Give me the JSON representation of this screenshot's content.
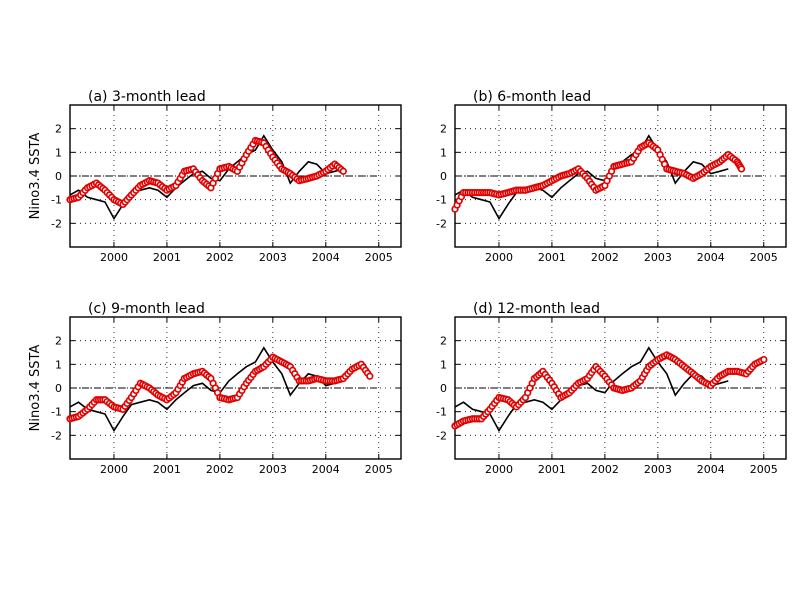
{
  "colors": {
    "observed": "#000000",
    "forecast": "#e00000",
    "grid": "#000000"
  },
  "chart_data": [
    {
      "type": "line",
      "title": "(a) 3-month lead",
      "ylabel": "Nino3.4 SSTA",
      "xlim": [
        1999.17,
        2005.42
      ],
      "ylim": [
        -3,
        3
      ],
      "xticks": [
        2000,
        2001,
        2002,
        2003,
        2004,
        2005
      ],
      "yticks": [
        -2,
        -1,
        0,
        1,
        2
      ],
      "grid": true,
      "zero_line": true,
      "series": [
        {
          "style": "solid",
          "x": [
            1999.17,
            1999.33,
            1999.5,
            1999.67,
            1999.83,
            2000.0,
            2000.17,
            2000.33,
            2000.5,
            2000.67,
            2000.83,
            2001.0,
            2001.17,
            2001.33,
            2001.5,
            2001.67,
            2001.83,
            2002.0,
            2002.17,
            2002.33,
            2002.5,
            2002.67,
            2002.83,
            2003.0,
            2003.17,
            2003.33,
            2003.5,
            2003.67,
            2003.83,
            2004.0,
            2004.17,
            2004.33
          ],
          "y": [
            -0.8,
            -0.6,
            -0.9,
            -1.0,
            -1.1,
            -1.8,
            -1.2,
            -0.7,
            -0.6,
            -0.5,
            -0.6,
            -0.9,
            -0.5,
            -0.2,
            0.1,
            0.2,
            -0.1,
            -0.2,
            0.3,
            0.6,
            0.9,
            1.1,
            1.7,
            1.1,
            0.6,
            -0.3,
            0.2,
            0.6,
            0.5,
            0.1,
            0.2,
            0.3
          ]
        },
        {
          "style": "circles",
          "x": [
            1999.17,
            1999.33,
            1999.5,
            1999.67,
            1999.83,
            2000.0,
            2000.17,
            2000.33,
            2000.5,
            2000.67,
            2000.83,
            2001.0,
            2001.17,
            2001.33,
            2001.5,
            2001.67,
            2001.83,
            2002.0,
            2002.17,
            2002.33,
            2002.5,
            2002.67,
            2002.83,
            2003.0,
            2003.17,
            2003.33,
            2003.5,
            2003.67,
            2003.83,
            2004.0,
            2004.17,
            2004.33
          ],
          "y": [
            -1.0,
            -0.9,
            -0.5,
            -0.3,
            -0.6,
            -1.0,
            -1.2,
            -0.8,
            -0.4,
            -0.2,
            -0.3,
            -0.6,
            -0.4,
            0.2,
            0.3,
            -0.2,
            -0.5,
            0.3,
            0.4,
            0.2,
            0.9,
            1.5,
            1.4,
            0.8,
            0.3,
            0.1,
            -0.2,
            -0.1,
            0.0,
            0.2,
            0.5,
            0.2
          ]
        }
      ]
    },
    {
      "type": "line",
      "title": "(b) 6-month lead",
      "ylabel": "",
      "xlim": [
        1999.17,
        2005.42
      ],
      "ylim": [
        -3,
        3
      ],
      "xticks": [
        2000,
        2001,
        2002,
        2003,
        2004,
        2005
      ],
      "yticks": [
        -2,
        -1,
        0,
        1,
        2
      ],
      "grid": true,
      "zero_line": true,
      "series": [
        {
          "style": "solid",
          "x": [
            1999.17,
            1999.33,
            1999.5,
            1999.67,
            1999.83,
            2000.0,
            2000.17,
            2000.33,
            2000.5,
            2000.67,
            2000.83,
            2001.0,
            2001.17,
            2001.33,
            2001.5,
            2001.67,
            2001.83,
            2002.0,
            2002.17,
            2002.33,
            2002.5,
            2002.67,
            2002.83,
            2003.0,
            2003.17,
            2003.33,
            2003.5,
            2003.67,
            2003.83,
            2004.0,
            2004.17,
            2004.33
          ],
          "y": [
            -0.8,
            -0.6,
            -0.9,
            -1.0,
            -1.1,
            -1.8,
            -1.2,
            -0.7,
            -0.6,
            -0.5,
            -0.6,
            -0.9,
            -0.5,
            -0.2,
            0.1,
            0.2,
            -0.1,
            -0.2,
            0.3,
            0.6,
            0.9,
            1.1,
            1.7,
            1.1,
            0.6,
            -0.3,
            0.2,
            0.6,
            0.5,
            0.1,
            0.2,
            0.3
          ]
        },
        {
          "style": "circles",
          "x": [
            1999.17,
            1999.33,
            1999.5,
            1999.67,
            1999.83,
            2000.0,
            2000.17,
            2000.33,
            2000.5,
            2000.67,
            2000.83,
            2001.0,
            2001.17,
            2001.33,
            2001.5,
            2001.67,
            2001.83,
            2002.0,
            2002.17,
            2002.33,
            2002.5,
            2002.67,
            2002.83,
            2003.0,
            2003.17,
            2003.33,
            2003.5,
            2003.67,
            2003.83,
            2004.0,
            2004.17,
            2004.33,
            2004.5,
            2004.58
          ],
          "y": [
            -1.4,
            -0.7,
            -0.7,
            -0.7,
            -0.7,
            -0.8,
            -0.7,
            -0.6,
            -0.6,
            -0.5,
            -0.4,
            -0.2,
            0.0,
            0.1,
            0.3,
            -0.1,
            -0.6,
            -0.4,
            0.4,
            0.5,
            0.6,
            1.2,
            1.4,
            1.1,
            0.3,
            0.2,
            0.1,
            -0.1,
            0.1,
            0.4,
            0.6,
            0.9,
            0.6,
            0.3
          ]
        }
      ]
    },
    {
      "type": "line",
      "title": "(c) 9-month lead",
      "ylabel": "Nino3.4 SSTA",
      "xlim": [
        1999.17,
        2005.42
      ],
      "ylim": [
        -3,
        3
      ],
      "xticks": [
        2000,
        2001,
        2002,
        2003,
        2004,
        2005
      ],
      "yticks": [
        -2,
        -1,
        0,
        1,
        2
      ],
      "grid": true,
      "zero_line": true,
      "series": [
        {
          "style": "solid",
          "x": [
            1999.17,
            1999.33,
            1999.5,
            1999.67,
            1999.83,
            2000.0,
            2000.17,
            2000.33,
            2000.5,
            2000.67,
            2000.83,
            2001.0,
            2001.17,
            2001.33,
            2001.5,
            2001.67,
            2001.83,
            2002.0,
            2002.17,
            2002.33,
            2002.5,
            2002.67,
            2002.83,
            2003.0,
            2003.17,
            2003.33,
            2003.5,
            2003.67,
            2003.83,
            2004.0,
            2004.17,
            2004.33
          ],
          "y": [
            -0.8,
            -0.6,
            -0.9,
            -1.0,
            -1.1,
            -1.8,
            -1.2,
            -0.7,
            -0.6,
            -0.5,
            -0.6,
            -0.9,
            -0.5,
            -0.2,
            0.1,
            0.2,
            -0.1,
            -0.2,
            0.3,
            0.6,
            0.9,
            1.1,
            1.7,
            1.1,
            0.6,
            -0.3,
            0.2,
            0.6,
            0.5,
            0.1,
            0.2,
            0.3
          ]
        },
        {
          "style": "circles",
          "x": [
            1999.17,
            1999.33,
            1999.5,
            1999.67,
            1999.83,
            2000.0,
            2000.17,
            2000.33,
            2000.5,
            2000.67,
            2000.83,
            2001.0,
            2001.17,
            2001.33,
            2001.5,
            2001.67,
            2001.83,
            2002.0,
            2002.17,
            2002.33,
            2002.5,
            2002.67,
            2002.83,
            2003.0,
            2003.17,
            2003.33,
            2003.5,
            2003.67,
            2003.83,
            2004.0,
            2004.17,
            2004.33,
            2004.5,
            2004.67,
            2004.83
          ],
          "y": [
            -1.3,
            -1.2,
            -0.9,
            -0.5,
            -0.5,
            -0.8,
            -0.9,
            -0.4,
            0.2,
            0.0,
            -0.3,
            -0.5,
            -0.2,
            0.4,
            0.6,
            0.7,
            0.4,
            -0.4,
            -0.5,
            -0.4,
            0.2,
            0.7,
            0.9,
            1.3,
            1.1,
            0.9,
            0.3,
            0.3,
            0.4,
            0.3,
            0.3,
            0.4,
            0.8,
            1.0,
            0.5
          ]
        }
      ]
    },
    {
      "type": "line",
      "title": "(d) 12-month lead",
      "ylabel": "",
      "xlim": [
        1999.17,
        2005.42
      ],
      "ylim": [
        -3,
        3
      ],
      "xticks": [
        2000,
        2001,
        2002,
        2003,
        2004,
        2005
      ],
      "yticks": [
        -2,
        -1,
        0,
        1,
        2
      ],
      "grid": true,
      "zero_line": true,
      "series": [
        {
          "style": "solid",
          "x": [
            1999.17,
            1999.33,
            1999.5,
            1999.67,
            1999.83,
            2000.0,
            2000.17,
            2000.33,
            2000.5,
            2000.67,
            2000.83,
            2001.0,
            2001.17,
            2001.33,
            2001.5,
            2001.67,
            2001.83,
            2002.0,
            2002.17,
            2002.33,
            2002.5,
            2002.67,
            2002.83,
            2003.0,
            2003.17,
            2003.33,
            2003.5,
            2003.67,
            2003.83,
            2004.0,
            2004.17,
            2004.33
          ],
          "y": [
            -0.8,
            -0.6,
            -0.9,
            -1.0,
            -1.1,
            -1.8,
            -1.2,
            -0.7,
            -0.6,
            -0.5,
            -0.6,
            -0.9,
            -0.5,
            -0.2,
            0.1,
            0.2,
            -0.1,
            -0.2,
            0.3,
            0.6,
            0.9,
            1.1,
            1.7,
            1.1,
            0.6,
            -0.3,
            0.2,
            0.6,
            0.5,
            0.1,
            0.2,
            0.3
          ]
        },
        {
          "style": "circles",
          "x": [
            1999.17,
            1999.33,
            1999.5,
            1999.67,
            1999.83,
            2000.0,
            2000.17,
            2000.33,
            2000.5,
            2000.67,
            2000.83,
            2001.0,
            2001.17,
            2001.33,
            2001.5,
            2001.67,
            2001.83,
            2002.0,
            2002.17,
            2002.33,
            2002.5,
            2002.67,
            2002.83,
            2003.0,
            2003.17,
            2003.33,
            2003.5,
            2003.67,
            2003.83,
            2004.0,
            2004.17,
            2004.33,
            2004.5,
            2004.67,
            2004.83,
            2005.0
          ],
          "y": [
            -1.6,
            -1.4,
            -1.3,
            -1.3,
            -0.9,
            -0.4,
            -0.5,
            -0.8,
            -0.4,
            0.4,
            0.7,
            0.2,
            -0.4,
            -0.2,
            0.2,
            0.4,
            0.9,
            0.5,
            0.0,
            -0.1,
            0.0,
            0.3,
            0.9,
            1.2,
            1.4,
            1.2,
            0.9,
            0.6,
            0.3,
            0.1,
            0.5,
            0.7,
            0.7,
            0.6,
            1.0,
            1.2
          ]
        }
      ]
    }
  ]
}
